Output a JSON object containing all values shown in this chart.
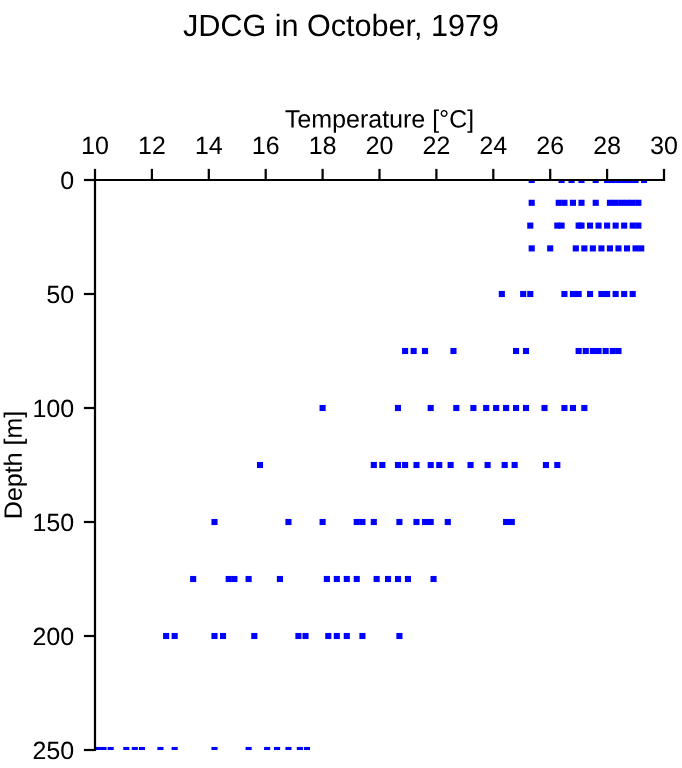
{
  "chart_data": {
    "type": "scatter",
    "title": "JDCG in October, 1979",
    "xlabel": "Temperature [°C]",
    "ylabel": "Depth [m]",
    "xlim": [
      10,
      30
    ],
    "xticks": [
      10,
      12,
      14,
      16,
      18,
      20,
      22,
      24,
      26,
      28,
      30
    ],
    "ylim": [
      250,
      0
    ],
    "yticks": [
      0,
      50,
      100,
      150,
      200,
      250
    ],
    "marker": "square",
    "grid": false,
    "legend": false,
    "series": [
      {
        "color": "#0000ff",
        "x": [
          25.35,
          26.4,
          26.75,
          27.1,
          27.6,
          28.0,
          28.2,
          28.4,
          28.6,
          28.8,
          29.0,
          29.3,
          25.35,
          26.3,
          26.5,
          26.8,
          27.1,
          27.6,
          28.1,
          28.3,
          28.5,
          28.7,
          28.9,
          29.1,
          25.3,
          26.25,
          26.4,
          27.0,
          27.1,
          27.4,
          27.7,
          28.0,
          28.3,
          28.6,
          28.9,
          29.1,
          25.35,
          26.0,
          26.9,
          27.2,
          27.5,
          27.8,
          28.1,
          28.4,
          28.7,
          29.0,
          29.2,
          24.3,
          25.05,
          25.3,
          26.5,
          26.8,
          27.0,
          27.4,
          27.8,
          28.0,
          28.3,
          28.6,
          28.9,
          20.9,
          21.2,
          21.6,
          22.6,
          24.8,
          25.15,
          27.0,
          27.25,
          27.5,
          27.7,
          27.95,
          28.2,
          28.4,
          18.0,
          20.65,
          21.8,
          22.7,
          23.3,
          23.75,
          24.1,
          24.45,
          24.8,
          25.15,
          25.8,
          26.5,
          26.8,
          27.2,
          15.8,
          19.8,
          20.1,
          20.65,
          20.9,
          21.3,
          21.8,
          22.1,
          22.5,
          23.2,
          23.8,
          24.4,
          24.75,
          25.85,
          26.25,
          14.2,
          16.8,
          18.0,
          19.2,
          19.4,
          19.8,
          20.7,
          21.3,
          21.6,
          21.8,
          22.4,
          24.45,
          24.65,
          13.45,
          14.7,
          14.9,
          15.4,
          16.5,
          18.15,
          18.5,
          18.85,
          19.2,
          19.9,
          20.3,
          20.65,
          21.0,
          21.9,
          12.5,
          12.8,
          14.2,
          14.5,
          15.6,
          17.15,
          17.4,
          18.2,
          18.5,
          18.85,
          19.4,
          20.7,
          10.1,
          10.3,
          10.55,
          11.1,
          11.4,
          11.65,
          12.3,
          12.8,
          14.2,
          15.4,
          16.05,
          16.4,
          16.8,
          17.2,
          17.45
        ],
        "values": [
          0,
          0,
          0,
          0,
          0,
          0,
          0,
          0,
          0,
          0,
          0,
          0,
          10,
          10,
          10,
          10,
          10,
          10,
          10,
          10,
          10,
          10,
          10,
          10,
          20,
          20,
          20,
          20,
          20,
          20,
          20,
          20,
          20,
          20,
          20,
          20,
          30,
          30,
          30,
          30,
          30,
          30,
          30,
          30,
          30,
          30,
          30,
          50,
          50,
          50,
          50,
          50,
          50,
          50,
          50,
          50,
          50,
          50,
          50,
          75,
          75,
          75,
          75,
          75,
          75,
          75,
          75,
          75,
          75,
          75,
          75,
          75,
          100,
          100,
          100,
          100,
          100,
          100,
          100,
          100,
          100,
          100,
          100,
          100,
          100,
          100,
          125,
          125,
          125,
          125,
          125,
          125,
          125,
          125,
          125,
          125,
          125,
          125,
          125,
          125,
          125,
          150,
          150,
          150,
          150,
          150,
          150,
          150,
          150,
          150,
          150,
          150,
          150,
          150,
          175,
          175,
          175,
          175,
          175,
          175,
          175,
          175,
          175,
          175,
          175,
          175,
          175,
          175,
          200,
          200,
          200,
          200,
          200,
          200,
          200,
          200,
          200,
          200,
          200,
          200,
          250,
          250,
          250,
          250,
          250,
          250,
          250,
          250,
          250,
          250,
          250,
          250,
          250,
          250,
          250
        ]
      }
    ]
  }
}
